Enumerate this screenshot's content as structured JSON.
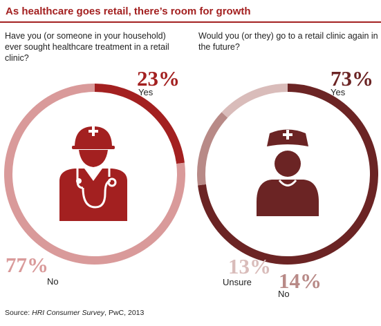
{
  "header": {
    "title": "As healthcare goes retail, there’s room for growth"
  },
  "colors": {
    "accent": "#a32020",
    "left_yes": "#a32020",
    "left_no": "#d99a9a",
    "right_yes": "#6b2424",
    "right_no": "#b88a87",
    "right_unsure": "#d9bcba"
  },
  "chart_data": [
    {
      "type": "pie",
      "question": "Have you (or someone in your household) ever sought healthcare treatment in a retail clinic?",
      "slices": [
        {
          "label": "Yes",
          "value": 23,
          "value_text": "23%"
        },
        {
          "label": "No",
          "value": 77,
          "value_text": "77%"
        }
      ],
      "icon": "doctor-icon"
    },
    {
      "type": "pie",
      "question": "Would you (or they) go to a retail clinic again in the future?",
      "slices": [
        {
          "label": "Yes",
          "value": 73,
          "value_text": "73%"
        },
        {
          "label": "No",
          "value": 14,
          "value_text": "14%"
        },
        {
          "label": "Unsure",
          "value": 13,
          "value_text": "13%"
        }
      ],
      "icon": "nurse-icon"
    }
  ],
  "footer": {
    "prefix": "Source: ",
    "source_name": "HRI Consumer Survey",
    "suffix": ", PwC, 2013"
  }
}
